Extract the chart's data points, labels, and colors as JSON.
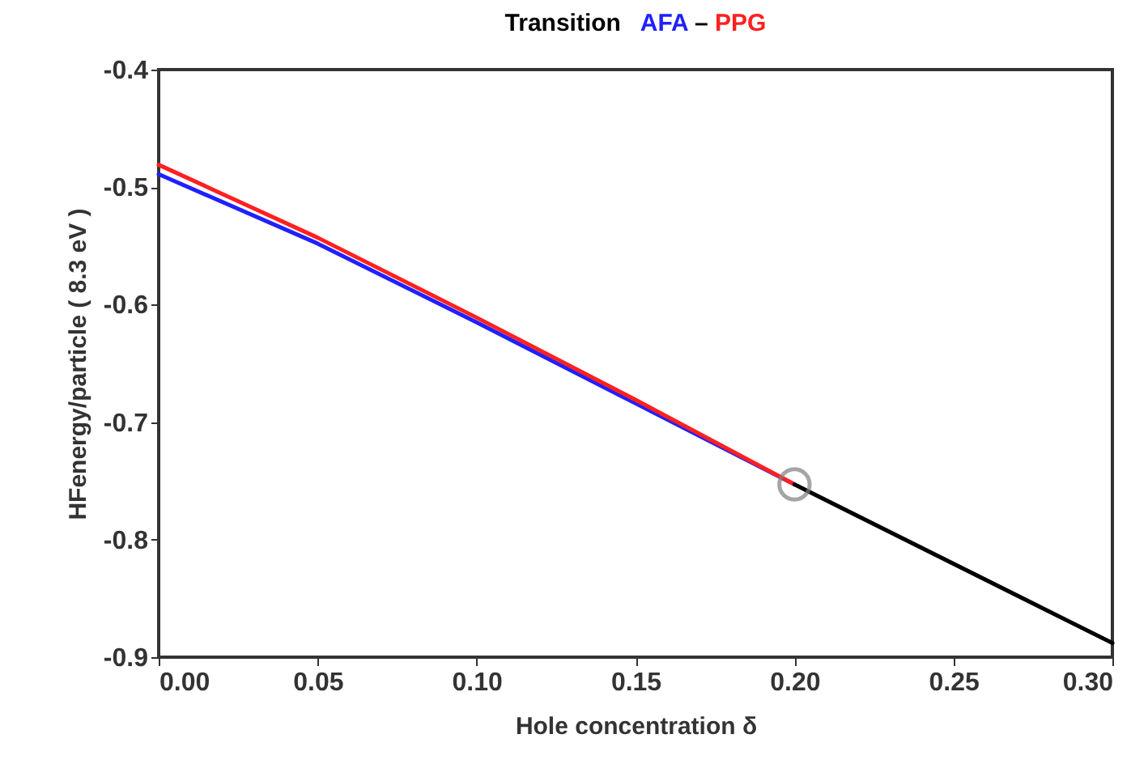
{
  "chart_data": {
    "type": "line",
    "title": "Transition",
    "annotations": [
      "–"
    ],
    "xlabel": "Hole concentration δ",
    "ylabel": "HFenergy/particle ( 8.3 eV )",
    "xlim": [
      0,
      0.3
    ],
    "xticks": [
      {
        "value": 0,
        "label": "0.00"
      },
      0.05,
      {
        "value": 0.1,
        "label": "0.10"
      },
      0.15,
      {
        "value": 0.2,
        "label": "0.20"
      },
      0.25,
      {
        "value": 0.3,
        "label": "0.30"
      }
    ],
    "ylim": [
      -0.9,
      -0.4
    ],
    "yticks": [
      -0.9,
      -0.8,
      -0.7,
      -0.6,
      -0.5,
      -0.4
    ],
    "grid": false,
    "series": [
      {
        "name": "AFA",
        "color": "#2020ff",
        "x": [
          0,
          0.05,
          0.1,
          0.15,
          0.2
        ],
        "values": [
          -0.489,
          -0.548,
          -0.615,
          -0.684,
          -0.753
        ]
      },
      {
        "name": "PPG",
        "color": "#ff2020",
        "x": [
          0,
          0.05,
          0.1,
          0.15,
          0.2
        ],
        "values": [
          -0.481,
          -0.543,
          -0.611,
          -0.681,
          -0.753
        ]
      },
      {
        "color": "#000000",
        "x": [
          0.2,
          0.3
        ],
        "values": [
          -0.753,
          -0.888
        ]
      },
      {
        "type": "scatter",
        "marker": "circle",
        "color": "#808080",
        "x": [
          0.2
        ],
        "values": [
          -0.753
        ]
      }
    ]
  }
}
